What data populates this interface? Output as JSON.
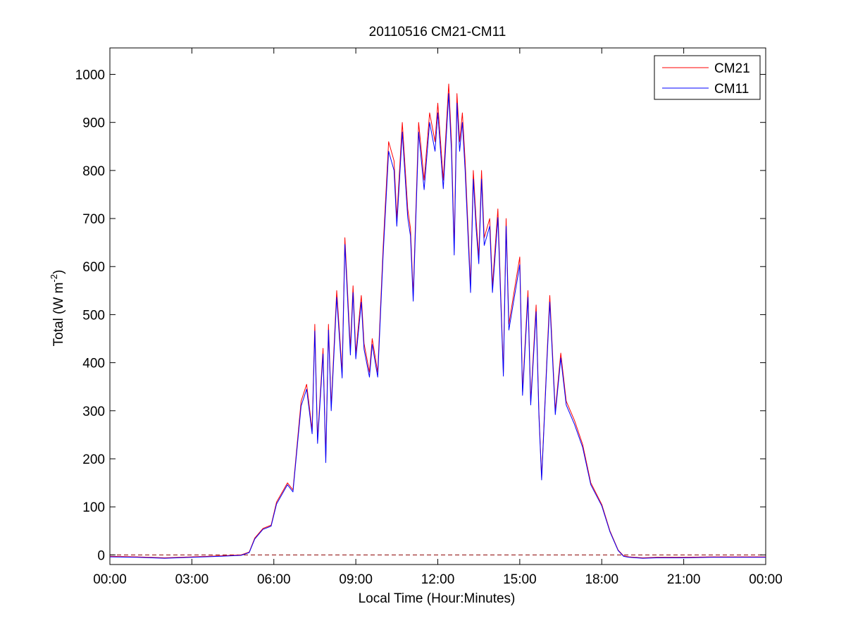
{
  "chart_data": {
    "type": "line",
    "title": "20110516 CM21-CM11",
    "xlabel": "Local Time (Hour:Minutes)",
    "ylabel_main": "Total (W m",
    "ylabel_sup": "-2",
    "ylabel_close": ")",
    "xlim": [
      0,
      24
    ],
    "ylim": [
      -20,
      1055
    ],
    "x_ticks": [
      {
        "value": 0,
        "label": "00:00"
      },
      {
        "value": 3,
        "label": "03:00"
      },
      {
        "value": 6,
        "label": "06:00"
      },
      {
        "value": 9,
        "label": "09:00"
      },
      {
        "value": 12,
        "label": "12:00"
      },
      {
        "value": 15,
        "label": "15:00"
      },
      {
        "value": 18,
        "label": "18:00"
      },
      {
        "value": 21,
        "label": "21:00"
      },
      {
        "value": 24,
        "label": "00:00"
      }
    ],
    "y_ticks": [
      0,
      100,
      200,
      300,
      400,
      500,
      600,
      700,
      800,
      900,
      1000
    ],
    "grid": false,
    "legend_position": "top-right",
    "reference_line": {
      "y": 0,
      "color": "#8b0000",
      "style": "dashed"
    },
    "series": [
      {
        "name": "CM21",
        "color": "#ff0000",
        "x": [
          0,
          1,
          2,
          3,
          4,
          4.8,
          5.1,
          5.3,
          5.6,
          5.9,
          6.1,
          6.3,
          6.5,
          6.7,
          6.9,
          7.0,
          7.2,
          7.4,
          7.5,
          7.6,
          7.8,
          7.9,
          8.0,
          8.1,
          8.3,
          8.5,
          8.6,
          8.8,
          8.9,
          9.0,
          9.2,
          9.3,
          9.5,
          9.6,
          9.8,
          10.0,
          10.2,
          10.4,
          10.5,
          10.7,
          10.9,
          11.0,
          11.1,
          11.3,
          11.5,
          11.7,
          11.9,
          12.0,
          12.2,
          12.4,
          12.5,
          12.6,
          12.7,
          12.8,
          12.9,
          13.0,
          13.2,
          13.3,
          13.4,
          13.5,
          13.6,
          13.7,
          13.9,
          14.0,
          14.2,
          14.4,
          14.5,
          14.6,
          14.8,
          15.0,
          15.1,
          15.3,
          15.4,
          15.6,
          15.7,
          15.8,
          16.0,
          16.1,
          16.3,
          16.5,
          16.7,
          17.0,
          17.3,
          17.6,
          18.0,
          18.3,
          18.6,
          18.8,
          19.0,
          19.5,
          20,
          21,
          22,
          23,
          24
        ],
        "values": [
          -3,
          -4,
          -6,
          -4,
          -2,
          0,
          6,
          35,
          55,
          62,
          110,
          130,
          150,
          135,
          260,
          320,
          355,
          260,
          480,
          240,
          430,
          200,
          480,
          310,
          550,
          380,
          660,
          430,
          560,
          420,
          540,
          440,
          380,
          450,
          380,
          640,
          860,
          820,
          700,
          900,
          720,
          680,
          540,
          900,
          780,
          920,
          860,
          940,
          780,
          980,
          860,
          640,
          960,
          860,
          920,
          820,
          560,
          800,
          700,
          620,
          800,
          660,
          700,
          560,
          720,
          380,
          700,
          480,
          550,
          620,
          340,
          550,
          320,
          520,
          300,
          160,
          420,
          540,
          300,
          420,
          320,
          280,
          230,
          150,
          105,
          50,
          10,
          -2,
          -4,
          -6,
          -5,
          -5,
          -4,
          -4,
          -4
        ]
      },
      {
        "name": "CM11",
        "color": "#0000ff",
        "x": [
          0,
          1,
          2,
          3,
          4,
          4.8,
          5.1,
          5.3,
          5.6,
          5.9,
          6.1,
          6.3,
          6.5,
          6.7,
          6.9,
          7.0,
          7.2,
          7.4,
          7.5,
          7.6,
          7.8,
          7.9,
          8.0,
          8.1,
          8.3,
          8.5,
          8.6,
          8.8,
          8.9,
          9.0,
          9.2,
          9.3,
          9.5,
          9.6,
          9.8,
          10.0,
          10.2,
          10.4,
          10.5,
          10.7,
          10.9,
          11.0,
          11.1,
          11.3,
          11.5,
          11.7,
          11.9,
          12.0,
          12.2,
          12.4,
          12.5,
          12.6,
          12.7,
          12.8,
          12.9,
          13.0,
          13.2,
          13.3,
          13.4,
          13.5,
          13.6,
          13.7,
          13.9,
          14.0,
          14.2,
          14.4,
          14.5,
          14.6,
          14.8,
          15.0,
          15.1,
          15.3,
          15.4,
          15.6,
          15.7,
          15.8,
          16.0,
          16.1,
          16.3,
          16.5,
          16.7,
          17.0,
          17.3,
          17.6,
          18.0,
          18.3,
          18.6,
          18.8,
          19.0,
          19.5,
          20,
          21,
          22,
          23,
          24
        ],
        "values": [
          -4,
          -5,
          -7,
          -5,
          -3,
          -1,
          5,
          33,
          53,
          60,
          106,
          126,
          146,
          131,
          252,
          310,
          345,
          252,
          466,
          232,
          418,
          192,
          468,
          300,
          536,
          368,
          646,
          416,
          546,
          408,
          526,
          428,
          370,
          438,
          370,
          624,
          840,
          800,
          684,
          880,
          702,
          664,
          528,
          880,
          760,
          900,
          840,
          920,
          762,
          960,
          840,
          624,
          940,
          840,
          900,
          800,
          546,
          782,
          682,
          606,
          782,
          644,
          684,
          546,
          702,
          372,
          684,
          468,
          536,
          604,
          332,
          536,
          312,
          506,
          292,
          156,
          410,
          526,
          292,
          410,
          312,
          272,
          224,
          146,
          102,
          48,
          9,
          -3,
          -5,
          -7,
          -6,
          -6,
          -5,
          -5,
          -5
        ]
      }
    ]
  }
}
